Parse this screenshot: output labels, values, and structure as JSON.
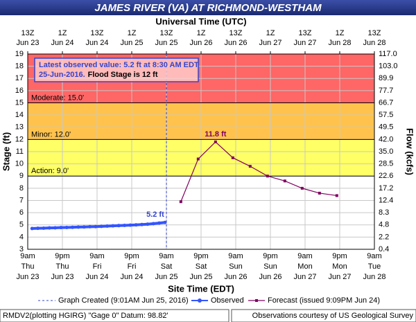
{
  "chart_data": {
    "type": "line",
    "title": "JAMES RIVER (VA) AT RICHMOND-WESTHAM",
    "x2_label": "Universal Time (UTC)",
    "x_label": "Site Time (EDT)",
    "y_label": "Stage (ft)",
    "y2_label": "Flow (kcfs)",
    "annotation": {
      "line1": "Latest observed value: 5.2 ft at 8:30 AM EDT",
      "date": "25-Jun-2016.",
      "flood": "Flood Stage is 12 ft"
    },
    "created_line": {
      "label": "Graph Created (9:01AM Jun 25, 2016)",
      "x": "2016-06-25T09:01-04:00",
      "color": "#3344cc"
    },
    "flood_levels": [
      {
        "label": "Action: 9.0'",
        "value": 9,
        "color": "#ffff66"
      },
      {
        "label": "Minor: 12.0'",
        "value": 12,
        "color": "#ffc34d"
      },
      {
        "label": "Moderate: 15.0'",
        "value": 15,
        "color": "#ff6666"
      }
    ],
    "xlim": [
      "2016-06-23T09:00-04:00",
      "2016-06-28T09:00-04:00"
    ],
    "xticks": [
      {
        "value": "2016-06-23T09:00-04:00",
        "label": [
          "9am",
          "Thu",
          "Jun 23"
        ]
      },
      {
        "value": "2016-06-23T21:00-04:00",
        "label": [
          "9pm",
          "Thu",
          "Jun 23"
        ]
      },
      {
        "value": "2016-06-24T09:00-04:00",
        "label": [
          "9am",
          "Fri",
          "Jun 24"
        ]
      },
      {
        "value": "2016-06-24T21:00-04:00",
        "label": [
          "9pm",
          "Fri",
          "Jun 24"
        ]
      },
      {
        "value": "2016-06-25T09:00-04:00",
        "label": [
          "9am",
          "Sat",
          "Jun 25"
        ]
      },
      {
        "value": "2016-06-25T21:00-04:00",
        "label": [
          "9pm",
          "Sat",
          "Jun 25"
        ]
      },
      {
        "value": "2016-06-26T09:00-04:00",
        "label": [
          "9am",
          "Sun",
          "Jun 26"
        ]
      },
      {
        "value": "2016-06-26T21:00-04:00",
        "label": [
          "9pm",
          "Sun",
          "Jun 26"
        ]
      },
      {
        "value": "2016-06-27T09:00-04:00",
        "label": [
          "9am",
          "Mon",
          "Jun 27"
        ]
      },
      {
        "value": "2016-06-27T21:00-04:00",
        "label": [
          "9pm",
          "Mon",
          "Jun 27"
        ]
      },
      {
        "value": "2016-06-28T09:00-04:00",
        "label": [
          "9am",
          "Tue",
          "Jun 28"
        ]
      }
    ],
    "x2ticks": [
      {
        "value": "2016-06-23T13:00Z",
        "label": [
          "13Z",
          "Jun 23"
        ]
      },
      {
        "value": "2016-06-24T01:00Z",
        "label": [
          "1Z",
          "Jun 24"
        ]
      },
      {
        "value": "2016-06-24T13:00Z",
        "label": [
          "13Z",
          "Jun 24"
        ]
      },
      {
        "value": "2016-06-25T01:00Z",
        "label": [
          "1Z",
          "Jun 25"
        ]
      },
      {
        "value": "2016-06-25T13:00Z",
        "label": [
          "13Z",
          "Jun 25"
        ]
      },
      {
        "value": "2016-06-26T01:00Z",
        "label": [
          "1Z",
          "Jun 26"
        ]
      },
      {
        "value": "2016-06-26T13:00Z",
        "label": [
          "13Z",
          "Jun 26"
        ]
      },
      {
        "value": "2016-06-27T01:00Z",
        "label": [
          "1Z",
          "Jun 27"
        ]
      },
      {
        "value": "2016-06-27T13:00Z",
        "label": [
          "13Z",
          "Jun 27"
        ]
      },
      {
        "value": "2016-06-28T01:00Z",
        "label": [
          "1Z",
          "Jun 28"
        ]
      },
      {
        "value": "2016-06-28T13:00Z",
        "label": [
          "13Z",
          "Jun 28"
        ]
      }
    ],
    "ylim": [
      3,
      19
    ],
    "yticks": [
      3,
      4,
      5,
      6,
      7,
      8,
      9,
      10,
      11,
      12,
      13,
      14,
      15,
      16,
      17,
      18,
      19
    ],
    "y2ticks": [
      0.4,
      2.2,
      4.8,
      8.3,
      12.4,
      17.2,
      22.6,
      28.5,
      {
        "value": 35,
        "label": "35.0"
      },
      {
        "value": 42,
        "label": "42.0"
      },
      49.5,
      57.5,
      66.7,
      77.7,
      89.9,
      {
        "value": 103,
        "label": "103.0"
      },
      {
        "value": 117,
        "label": "117.0"
      }
    ],
    "grid": true,
    "series": [
      {
        "name": "Observed",
        "color": "#3355ff",
        "x": [
          "2016-06-23T10:30-04:00",
          "2016-06-23T12:30-04:00",
          "2016-06-23T14:30-04:00",
          "2016-06-23T16:30-04:00",
          "2016-06-23T18:30-04:00",
          "2016-06-23T20:30-04:00",
          "2016-06-23T22:30-04:00",
          "2016-06-24T00:30-04:00",
          "2016-06-24T02:30-04:00",
          "2016-06-24T04:30-04:00",
          "2016-06-24T06:30-04:00",
          "2016-06-24T08:30-04:00",
          "2016-06-24T10:30-04:00",
          "2016-06-24T12:30-04:00",
          "2016-06-24T14:30-04:00",
          "2016-06-24T16:30-04:00",
          "2016-06-24T18:30-04:00",
          "2016-06-24T20:30-04:00",
          "2016-06-24T22:30-04:00",
          "2016-06-25T00:30-04:00",
          "2016-06-25T02:30-04:00",
          "2016-06-25T04:30-04:00",
          "2016-06-25T06:30-04:00",
          "2016-06-25T08:30-04:00"
        ],
        "values": [
          4.7,
          4.72,
          4.73,
          4.75,
          4.76,
          4.78,
          4.79,
          4.8,
          4.82,
          4.83,
          4.85,
          4.86,
          4.88,
          4.9,
          4.92,
          4.94,
          4.96,
          4.98,
          5.0,
          5.03,
          5.06,
          5.1,
          5.15,
          5.2
        ],
        "value_labels": [
          null,
          null,
          null,
          null,
          null,
          null,
          null,
          null,
          null,
          null,
          null,
          null,
          null,
          null,
          null,
          null,
          null,
          null,
          null,
          null,
          null,
          null,
          null,
          "5.2 ft"
        ]
      },
      {
        "name": "Forecast (issued 9:09PM Jun 24)",
        "color": "#800060",
        "x": [
          "2016-06-25T14:00-04:00",
          "2016-06-25T20:00-04:00",
          "2016-06-26T02:00-04:00",
          "2016-06-26T08:00-04:00",
          "2016-06-26T14:00-04:00",
          "2016-06-26T20:00-04:00",
          "2016-06-27T02:00-04:00",
          "2016-06-27T08:00-04:00",
          "2016-06-27T14:00-04:00",
          "2016-06-27T20:00-04:00"
        ],
        "values": [
          6.9,
          10.4,
          11.8,
          10.5,
          9.8,
          9.0,
          8.6,
          8.0,
          7.6,
          7.4
        ],
        "value_labels": [
          null,
          null,
          "11.8 ft",
          null,
          null,
          null,
          null,
          null,
          null,
          null
        ]
      }
    ],
    "footer": {
      "left": "RMDV2(plotting HGIRG) \"Gage 0\" Datum: 98.82'",
      "right": "Observations courtesy of US Geological Survey"
    }
  }
}
